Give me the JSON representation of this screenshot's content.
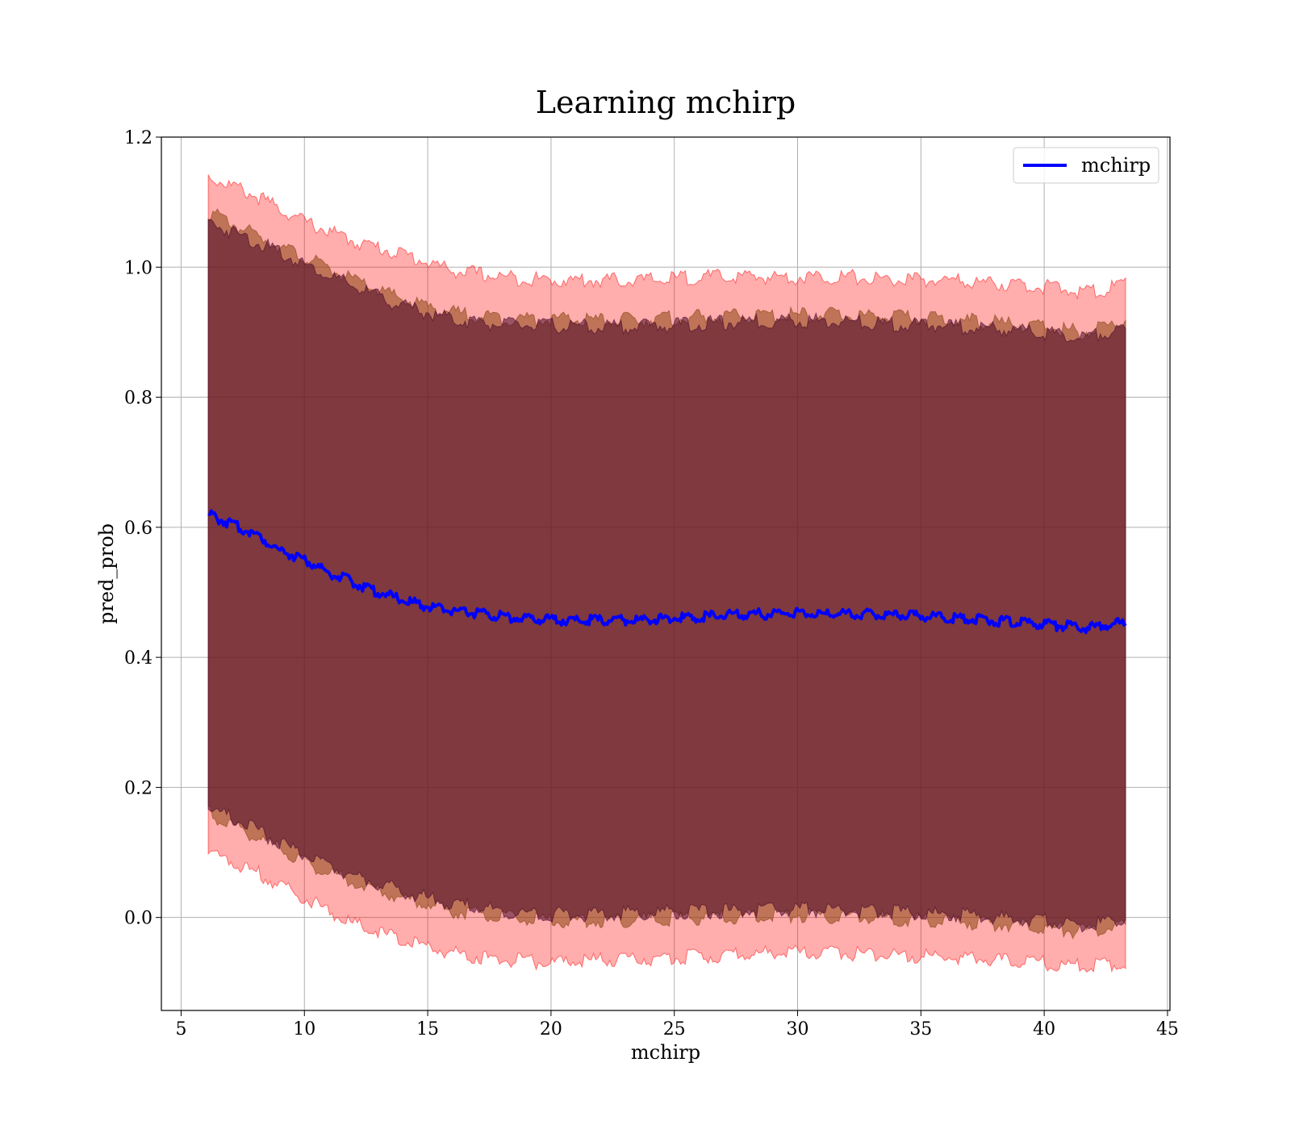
{
  "chart_data": {
    "type": "line",
    "title": "Learning mchirp",
    "xlabel": "mchirp",
    "ylabel": "pred_prob",
    "xlim": [
      4.2,
      45.1
    ],
    "ylim": [
      -0.143,
      1.2
    ],
    "x_ticks": [
      5,
      10,
      15,
      20,
      25,
      30,
      35,
      40,
      45
    ],
    "y_ticks": [
      0.0,
      0.2,
      0.4,
      0.6,
      0.8,
      1.0,
      1.2
    ],
    "x_tick_labels": [
      "5",
      "10",
      "15",
      "20",
      "25",
      "30",
      "35",
      "40",
      "45"
    ],
    "y_tick_labels": [
      "0.0",
      "0.2",
      "0.4",
      "0.6",
      "0.8",
      "1.0",
      "1.2"
    ],
    "grid": true,
    "legend": {
      "placement": "top-right",
      "entries": [
        "mchirp"
      ]
    },
    "colors": {
      "line": "#0000ff",
      "outer_band": "#ff0000",
      "middle_band": "#8b4513",
      "inner_band": "#4b0a2b"
    },
    "series": [
      {
        "name": "mchirp",
        "style": "line",
        "x": [
          6.1,
          7.0,
          8.0,
          9.0,
          10.0,
          11.0,
          12.0,
          13.0,
          14.0,
          15.0,
          16.0,
          17.0,
          18.0,
          19.0,
          20.0,
          21.0,
          22.0,
          23.0,
          24.0,
          25.0,
          26.0,
          27.0,
          28.0,
          29.0,
          30.0,
          31.0,
          32.0,
          33.0,
          34.0,
          35.0,
          36.0,
          37.0,
          38.0,
          39.0,
          40.0,
          40.5,
          41.0,
          41.5,
          42.0,
          42.5,
          43.0,
          43.3
        ],
        "y": [
          0.62,
          0.605,
          0.59,
          0.565,
          0.55,
          0.53,
          0.515,
          0.5,
          0.488,
          0.478,
          0.472,
          0.468,
          0.463,
          0.46,
          0.458,
          0.457,
          0.457,
          0.457,
          0.458,
          0.46,
          0.462,
          0.464,
          0.466,
          0.467,
          0.468,
          0.467,
          0.467,
          0.466,
          0.465,
          0.464,
          0.462,
          0.46,
          0.456,
          0.453,
          0.45,
          0.449,
          0.448,
          0.445,
          0.447,
          0.449,
          0.452,
          0.455
        ]
      }
    ],
    "bands": [
      {
        "role": "outer",
        "x": [
          6.1,
          8.0,
          10.0,
          12.0,
          14.0,
          16.0,
          18.0,
          20.0,
          22.0,
          24.0,
          26.0,
          28.0,
          30.0,
          32.0,
          34.0,
          36.0,
          38.0,
          40.0,
          41.5,
          42.5,
          43.3
        ],
        "upper": [
          1.14,
          1.11,
          1.07,
          1.04,
          1.02,
          0.995,
          0.985,
          0.98,
          0.98,
          0.98,
          0.985,
          0.985,
          0.985,
          0.985,
          0.98,
          0.98,
          0.975,
          0.97,
          0.962,
          0.965,
          0.975
        ],
        "lower": [
          0.1,
          0.07,
          0.03,
          -0.01,
          -0.035,
          -0.055,
          -0.065,
          -0.07,
          -0.065,
          -0.063,
          -0.06,
          -0.055,
          -0.055,
          -0.055,
          -0.058,
          -0.06,
          -0.065,
          -0.07,
          -0.075,
          -0.072,
          -0.07
        ]
      },
      {
        "role": "middle",
        "x": [
          6.1,
          8.0,
          10.0,
          12.0,
          14.0,
          16.0,
          18.0,
          20.0,
          22.0,
          24.0,
          26.0,
          28.0,
          30.0,
          32.0,
          34.0,
          36.0,
          38.0,
          40.0,
          41.5,
          42.5,
          43.3
        ],
        "upper": [
          1.085,
          1.05,
          1.015,
          0.98,
          0.95,
          0.93,
          0.922,
          0.92,
          0.918,
          0.92,
          0.923,
          0.925,
          0.927,
          0.926,
          0.923,
          0.92,
          0.915,
          0.908,
          0.9,
          0.91,
          0.92
        ],
        "lower": [
          0.16,
          0.125,
          0.085,
          0.055,
          0.03,
          0.01,
          0.0,
          -0.005,
          -0.005,
          -0.003,
          0.0,
          0.002,
          0.003,
          0.002,
          -0.002,
          -0.005,
          -0.01,
          -0.015,
          -0.022,
          -0.018,
          -0.012
        ]
      },
      {
        "role": "inner",
        "x": [
          6.1,
          8.0,
          10.0,
          12.0,
          14.0,
          16.0,
          18.0,
          20.0,
          22.0,
          24.0,
          26.0,
          28.0,
          30.0,
          32.0,
          34.0,
          36.0,
          38.0,
          40.0,
          41.5,
          42.5,
          43.3
        ],
        "upper": [
          1.07,
          1.04,
          1.005,
          0.97,
          0.94,
          0.92,
          0.912,
          0.91,
          0.908,
          0.91,
          0.913,
          0.916,
          0.918,
          0.916,
          0.912,
          0.91,
          0.905,
          0.9,
          0.89,
          0.9,
          0.905
        ],
        "lower": [
          0.17,
          0.135,
          0.095,
          0.065,
          0.04,
          0.02,
          0.01,
          0.005,
          0.005,
          0.007,
          0.009,
          0.011,
          0.012,
          0.011,
          0.008,
          0.005,
          0.0,
          -0.005,
          -0.012,
          -0.008,
          -0.003
        ]
      }
    ]
  }
}
